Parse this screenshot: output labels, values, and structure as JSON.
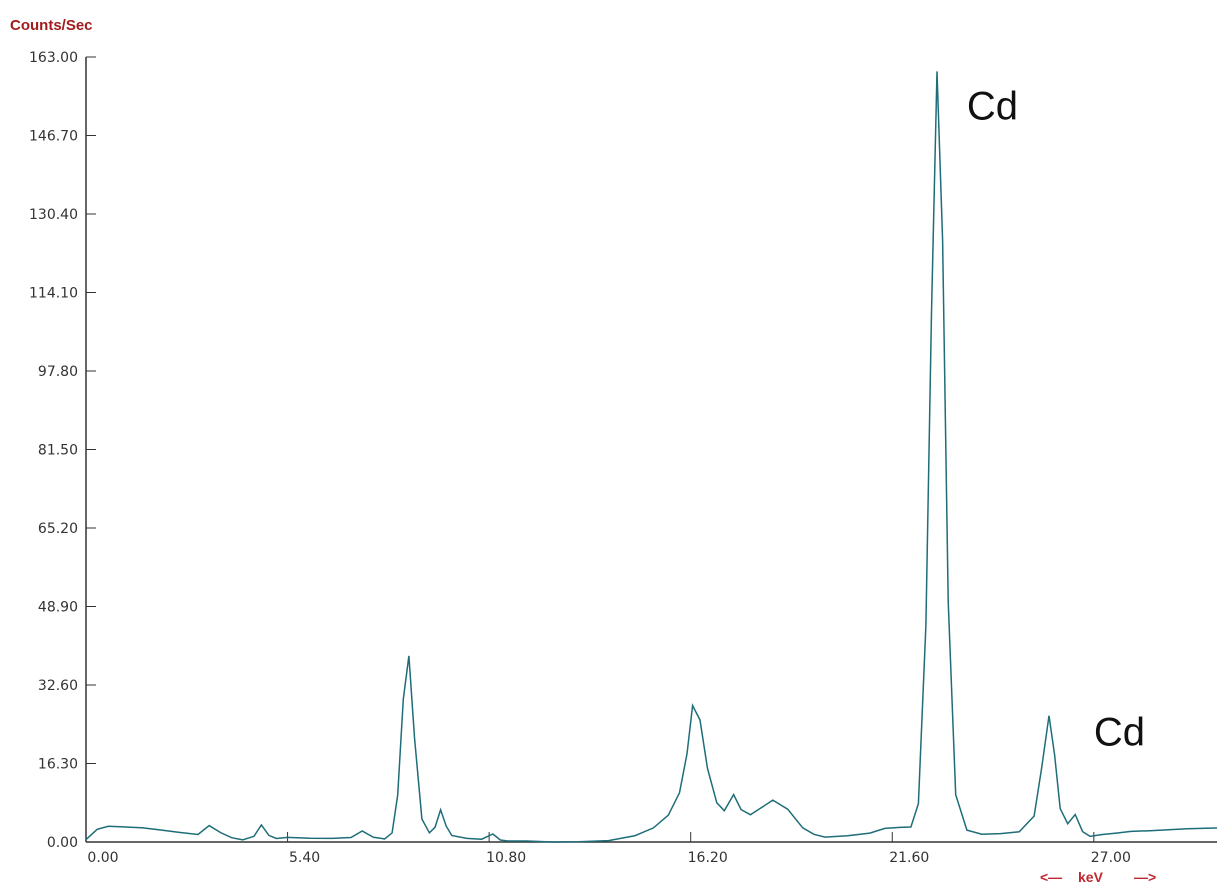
{
  "chart_data": {
    "type": "line",
    "ylabel": "Counts/Sec",
    "xlabel": "keV",
    "ylim": [
      0,
      163
    ],
    "xlim": [
      0,
      30.3
    ],
    "y_ticks": [
      "0.00",
      "16.30",
      "32.60",
      "48.90",
      "65.20",
      "81.50",
      "97.80",
      "114.10",
      "130.40",
      "146.70",
      "163.00"
    ],
    "x_ticks": [
      "0.00",
      "5.40",
      "10.80",
      "16.20",
      "21.60",
      "27.00"
    ],
    "annotations": [
      {
        "text": "Cd",
        "x": 23.6,
        "y": 150
      },
      {
        "text": "Cd",
        "x": 27.0,
        "y": 20
      }
    ],
    "line_color": "#1e6d78",
    "series": [
      {
        "x": [
          0.0,
          0.3,
          0.6,
          1.0,
          1.5,
          2.0,
          2.5,
          3.0,
          3.3,
          3.6,
          3.9,
          4.2,
          4.5,
          4.7,
          4.9,
          5.1,
          5.4,
          6.0,
          6.6,
          7.1,
          7.4,
          7.7,
          8.0,
          8.2,
          8.35,
          8.5,
          8.65,
          8.8,
          9.0,
          9.2,
          9.35,
          9.5,
          9.65,
          9.8,
          10.2,
          10.6,
          10.9,
          11.1,
          11.3,
          11.8,
          12.5,
          13.2,
          14.0,
          14.7,
          15.2,
          15.6,
          15.9,
          16.1,
          16.25,
          16.45,
          16.65,
          16.9,
          17.1,
          17.35,
          17.55,
          17.8,
          18.1,
          18.4,
          18.8,
          19.2,
          19.5,
          19.8,
          20.4,
          21.0,
          21.4,
          21.8,
          22.1,
          22.3,
          22.5,
          22.65,
          22.8,
          22.95,
          23.1,
          23.3,
          23.6,
          24.0,
          24.5,
          25.0,
          25.4,
          25.6,
          25.8,
          25.95,
          26.1,
          26.3,
          26.5,
          26.7,
          26.9,
          27.2,
          27.6,
          28.0,
          28.5,
          29.0,
          29.5,
          30.0,
          30.3
        ],
        "y": [
          0.5,
          2.5,
          3.0,
          2.8,
          2.6,
          2.2,
          1.8,
          1.5,
          3.5,
          2.2,
          1.2,
          0.8,
          1.5,
          3.8,
          1.5,
          0.7,
          0.8,
          0.5,
          0.4,
          0.6,
          2.0,
          0.8,
          0.6,
          2.0,
          10.0,
          30.0,
          39.0,
          22.0,
          5.0,
          2.0,
          3.0,
          6.5,
          3.0,
          1.0,
          0.4,
          0.3,
          1.5,
          0.4,
          0.2,
          0.2,
          0.3,
          0.4,
          0.6,
          1.5,
          3.0,
          5.5,
          10.0,
          18.0,
          28.0,
          25.0,
          15.0,
          8.0,
          6.5,
          10.0,
          7.0,
          6.0,
          7.5,
          9.0,
          7.0,
          3.0,
          1.5,
          0.8,
          1.0,
          1.5,
          2.5,
          2.8,
          3.0,
          8.0,
          45.0,
          110.0,
          160.0,
          125.0,
          50.0,
          10.0,
          2.5,
          1.5,
          1.5,
          1.8,
          5.0,
          15.0,
          26.0,
          18.0,
          7.0,
          4.0,
          6.0,
          2.5,
          1.5,
          1.8,
          2.0,
          2.2,
          2.2,
          2.3,
          2.4,
          2.5,
          2.6
        ]
      }
    ]
  }
}
